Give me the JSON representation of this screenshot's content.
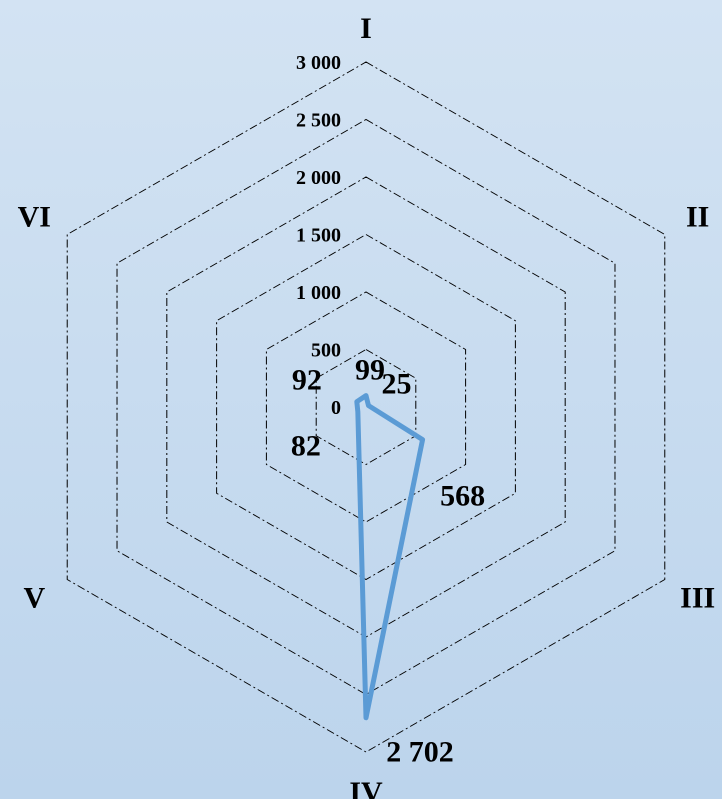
{
  "chart_data": {
    "type": "radar",
    "categories": [
      "I",
      "II",
      "III",
      "IV",
      "V",
      "VI"
    ],
    "series": [
      {
        "values": [
          99,
          25,
          568,
          2702,
          82,
          92
        ]
      }
    ],
    "data_labels": [
      "99",
      "25",
      "568",
      "2 702",
      "82",
      "92"
    ],
    "rlim": [
      0,
      3000
    ],
    "ticks": [
      0,
      500,
      1000,
      1500,
      2000,
      2500,
      3000
    ],
    "tick_labels": [
      "0",
      "500",
      "1 000",
      "1 500",
      "2 000",
      "2 500",
      "3 000"
    ],
    "grid": true,
    "legend": "none",
    "colors": {
      "series": "#5b9bd5",
      "grid": "#000000"
    }
  }
}
